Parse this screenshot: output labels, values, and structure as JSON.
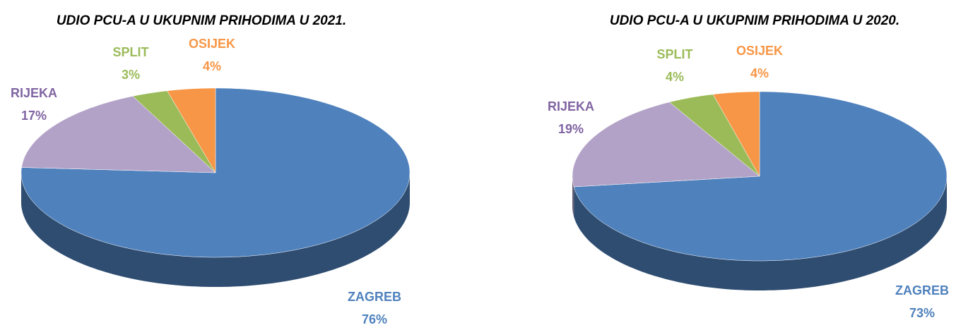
{
  "chart_data": [
    {
      "type": "pie",
      "title": "UDIO PCU-A U UKUPNIM PRIHODIMA U 2021.",
      "categories": [
        "ZAGREB",
        "RIJEKA",
        "SPLIT",
        "OSIJEK"
      ],
      "values": [
        76,
        17,
        3,
        4
      ],
      "value_labels": [
        "76%",
        "17%",
        "3%",
        "4%"
      ],
      "colors": [
        "#4f81bd",
        "#b3a2c7",
        "#9bbb59",
        "#f79646"
      ],
      "label_colors": [
        "#4f81bd",
        "#8064a2",
        "#9bbb59",
        "#f79646"
      ]
    },
    {
      "type": "pie",
      "title": "UDIO PCU-A U UKUPNIM PRIHODIMA U 2020.",
      "categories": [
        "ZAGREB",
        "RIJEKA",
        "SPLIT",
        "OSIJEK"
      ],
      "values": [
        73,
        19,
        4,
        4
      ],
      "value_labels": [
        "73%",
        "19%",
        "4%",
        "4%"
      ],
      "colors": [
        "#4f81bd",
        "#b3a2c7",
        "#9bbb59",
        "#f79646"
      ],
      "label_colors": [
        "#4f81bd",
        "#8064a2",
        "#9bbb59",
        "#f79646"
      ]
    }
  ]
}
